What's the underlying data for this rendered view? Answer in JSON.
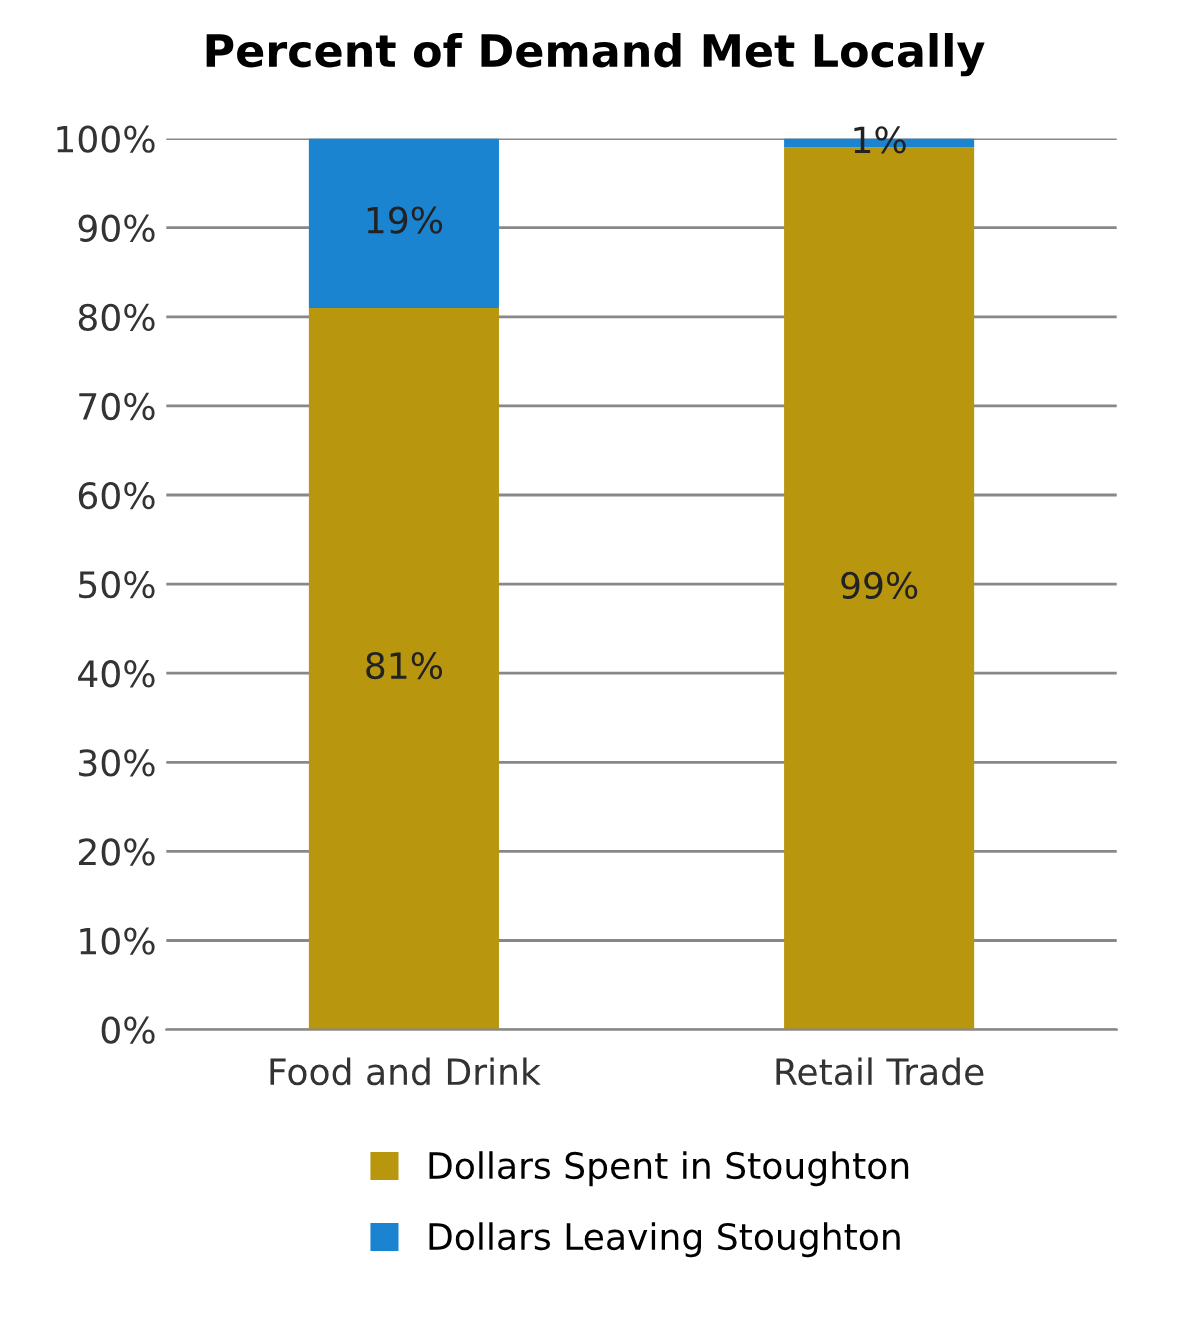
{
  "chart_data": {
    "type": "bar",
    "title": "Percent of Demand Met Locally",
    "categories": [
      "Food and Drink",
      "Retail Trade"
    ],
    "stacked": true,
    "series": [
      {
        "name": "Dollars Spent in Stoughton",
        "color": "#b8960e",
        "values": [
          81,
          99
        ],
        "value_labels": [
          "81%",
          "99%"
        ]
      },
      {
        "name": "Dollars Leaving Stoughton",
        "color": "#1a84d0",
        "values": [
          19,
          1
        ],
        "value_labels": [
          "19%",
          "1%"
        ]
      }
    ],
    "ylim": [
      0,
      100
    ],
    "yticks": [
      {
        "value": 0,
        "label": "0%"
      },
      {
        "value": 10,
        "label": "10%"
      },
      {
        "value": 20,
        "label": "20%"
      },
      {
        "value": 30,
        "label": "30%"
      },
      {
        "value": 40,
        "label": "40%"
      },
      {
        "value": 50,
        "label": "50%"
      },
      {
        "value": 60,
        "label": "60%"
      },
      {
        "value": 70,
        "label": "70%"
      },
      {
        "value": 80,
        "label": "80%"
      },
      {
        "value": 90,
        "label": "90%"
      },
      {
        "value": 100,
        "label": "100%"
      }
    ],
    "grid": "y",
    "legend": "bottom"
  }
}
